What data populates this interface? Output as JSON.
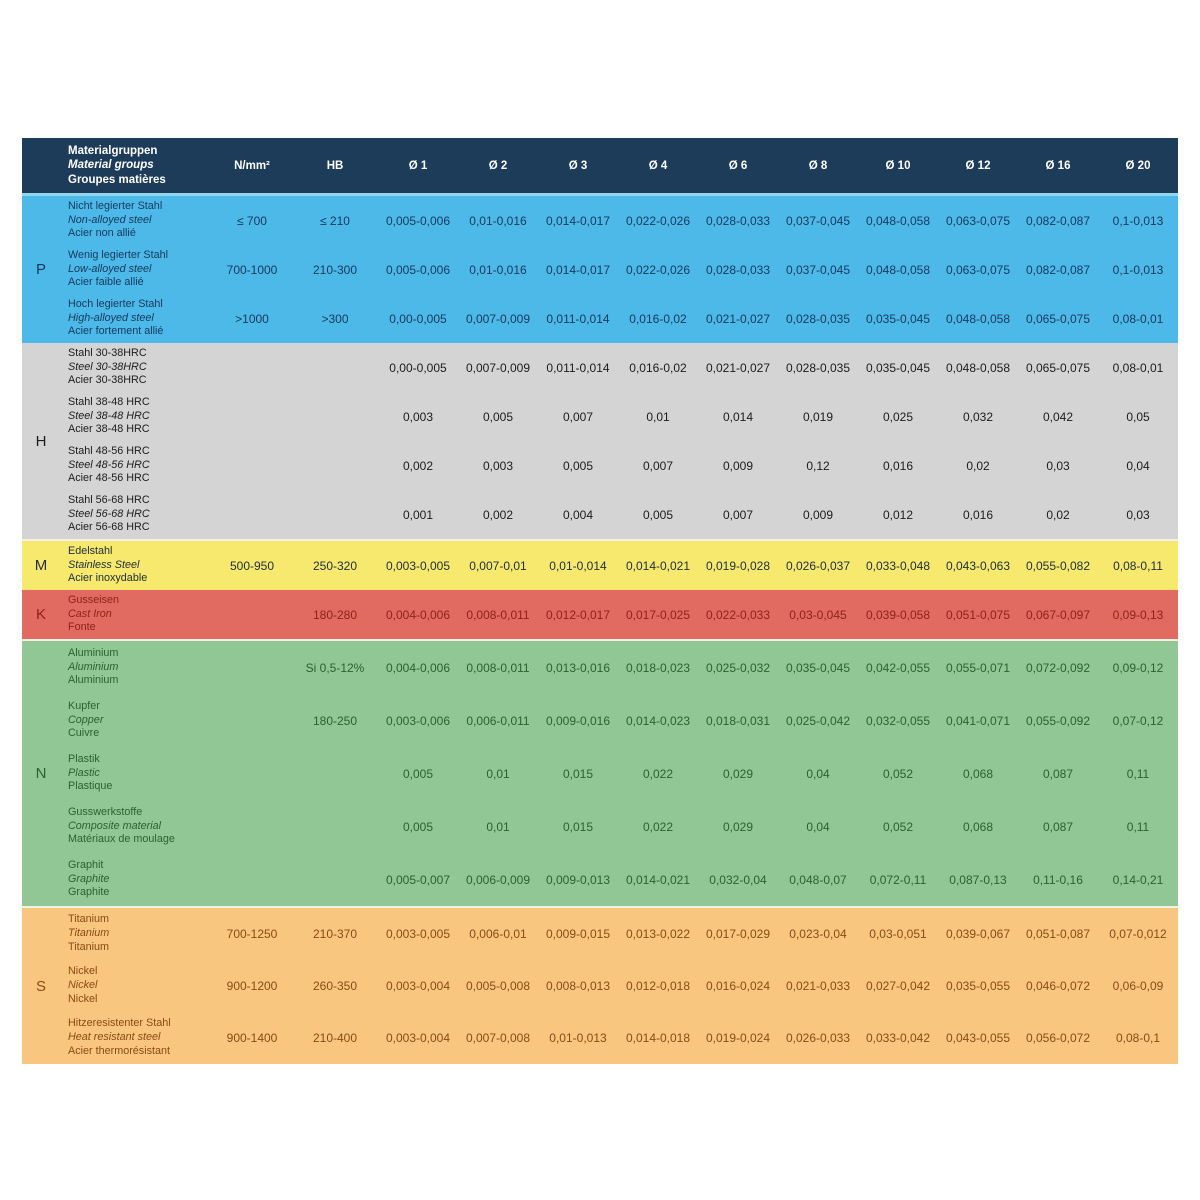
{
  "table": {
    "header": {
      "material_groups": [
        "Materialgruppen",
        "Material groups",
        "Groupes matières"
      ],
      "columns": [
        "N/mm²",
        "HB",
        "Ø 1",
        "Ø 2",
        "Ø 3",
        "Ø 4",
        "Ø 6",
        "Ø 8",
        "Ø 10",
        "Ø 12",
        "Ø 16",
        "Ø 20"
      ],
      "bg": "#1d3c59",
      "fg": "#ffffff"
    },
    "groups": [
      {
        "letter": "P",
        "bg": "#4cb9e9",
        "fg": "#17395c",
        "bold_names": true,
        "rows": [
          {
            "names": [
              "Nicht legierter Stahl",
              "Non-alloyed steel",
              "Acier non allié"
            ],
            "nmm2": "≤ 700",
            "hb": "≤ 210",
            "values": [
              "0,005-0,006",
              "0,01-0,016",
              "0,014-0,017",
              "0,022-0,026",
              "0,028-0,033",
              "0,037-0,045",
              "0,048-0,058",
              "0,063-0,075",
              "0,082-0,087",
              "0,1-0,013"
            ]
          },
          {
            "names": [
              "Wenig legierter Stahl",
              "Low-alloyed steel",
              "Acier faible allié"
            ],
            "nmm2": "700-1000",
            "hb": "210-300",
            "values": [
              "0,005-0,006",
              "0,01-0,016",
              "0,014-0,017",
              "0,022-0,026",
              "0,028-0,033",
              "0,037-0,045",
              "0,048-0,058",
              "0,063-0,075",
              "0,082-0,087",
              "0,1-0,013"
            ]
          },
          {
            "names": [
              "Hoch legierter Stahl",
              "High-alloyed steel",
              "Acier fortement allié"
            ],
            "nmm2": ">1000",
            "hb": ">300",
            "values": [
              "0,00-0,005",
              "0,007-0,009",
              "0,011-0,014",
              "0,016-0,02",
              "0,021-0,027",
              "0,028-0,035",
              "0,035-0,045",
              "0,048-0,058",
              "0,065-0,075",
              "0,08-0,01"
            ]
          }
        ]
      },
      {
        "letter": "H",
        "bg": "#d4d4d4",
        "fg": "#1c1c1c",
        "bold_names": true,
        "rows": [
          {
            "names": [
              "Stahl 30-38HRC",
              "Steel 30-38HRC",
              "Acier 30-38HRC"
            ],
            "nmm2": "",
            "hb": "",
            "values": [
              "0,00-0,005",
              "0,007-0,009",
              "0,011-0,014",
              "0,016-0,02",
              "0,021-0,027",
              "0,028-0,035",
              "0,035-0,045",
              "0,048-0,058",
              "0,065-0,075",
              "0,08-0,01"
            ]
          },
          {
            "names": [
              "Stahl 38-48 HRC",
              "Steel 38-48 HRC",
              "Acier 38-48 HRC"
            ],
            "nmm2": "",
            "hb": "",
            "values": [
              "0,003",
              "0,005",
              "0,007",
              "0,01",
              "0,014",
              "0,019",
              "0,025",
              "0,032",
              "0,042",
              "0,05"
            ]
          },
          {
            "names": [
              "Stahl 48-56 HRC",
              "Steel 48-56 HRC",
              "Acier 48-56 HRC"
            ],
            "nmm2": "",
            "hb": "",
            "values": [
              "0,002",
              "0,003",
              "0,005",
              "0,007",
              "0,009",
              "0,12",
              "0,016",
              "0,02",
              "0,03",
              "0,04"
            ]
          },
          {
            "names": [
              "Stahl 56-68 HRC",
              "Steel 56-68 HRC",
              "Acier 56-68 HRC"
            ],
            "nmm2": "",
            "hb": "",
            "values": [
              "0,001",
              "0,002",
              "0,004",
              "0,005",
              "0,007",
              "0,009",
              "0,012",
              "0,016",
              "0,02",
              "0,03"
            ]
          }
        ]
      },
      {
        "letter": "M",
        "bg": "#f7e96d",
        "fg": "#20303d",
        "bold_names": true,
        "rows": [
          {
            "names": [
              "Edelstahl",
              "Stainless Steel",
              "Acier inoxydable"
            ],
            "nmm2": "500-950",
            "hb": "250-320",
            "values": [
              "0,003-0,005",
              "0,007-0,01",
              "0,01-0,014",
              "0,014-0,021",
              "0,019-0,028",
              "0,026-0,037",
              "0,033-0,048",
              "0,043-0,063",
              "0,055-0,082",
              "0,08-0,11"
            ]
          }
        ]
      },
      {
        "letter": "K",
        "bg": "#e16a61",
        "fg": "#8f2318",
        "bold_names": false,
        "rows": [
          {
            "names": [
              "Gusseisen",
              "Cast Iron",
              "Fonte"
            ],
            "nmm2": "",
            "hb": "180-280",
            "values": [
              "0,004-0,006",
              "0,008-0,011",
              "0,012-0,017",
              "0,017-0,025",
              "0,022-0,033",
              "0,03-0,045",
              "0,039-0,058",
              "0,051-0,075",
              "0,067-0,097",
              "0,09-0,13"
            ]
          }
        ]
      },
      {
        "letter": "N",
        "bg": "#90c794",
        "fg": "#2c6132",
        "bold_names": false,
        "rows": [
          {
            "names": [
              "Aluminium",
              "Aluminium",
              "Aluminium"
            ],
            "nmm2": "",
            "hb": "Si 0,5-12%",
            "values": [
              "0,004-0,006",
              "0,008-0,011",
              "0,013-0,016",
              "0,018-0,023",
              "0,025-0,032",
              "0,035-0,045",
              "0,042-0,055",
              "0,055-0,071",
              "0,072-0,092",
              "0,09-0,12"
            ]
          },
          {
            "names": [
              "Kupfer",
              "Copper",
              "Cuivre"
            ],
            "nmm2": "",
            "hb": "180-250",
            "values": [
              "0,003-0,006",
              "0,006-0,011",
              "0,009-0,016",
              "0,014-0,023",
              "0,018-0,031",
              "0,025-0,042",
              "0,032-0,055",
              "0,041-0,071",
              "0,055-0,092",
              "0,07-0,12"
            ]
          },
          {
            "names": [
              "Plastik",
              "Plastic",
              "Plastique"
            ],
            "nmm2": "",
            "hb": "",
            "values": [
              "0,005",
              "0,01",
              "0,015",
              "0,022",
              "0,029",
              "0,04",
              "0,052",
              "0,068",
              "0,087",
              "0,11"
            ]
          },
          {
            "names": [
              "Gusswerkstoffe",
              "Composite material",
              "Matériaux de moulage"
            ],
            "nmm2": "",
            "hb": "",
            "values": [
              "0,005",
              "0,01",
              "0,015",
              "0,022",
              "0,029",
              "0,04",
              "0,052",
              "0,068",
              "0,087",
              "0,11"
            ]
          },
          {
            "names": [
              "Graphit",
              "Graphite",
              "Graphite"
            ],
            "nmm2": "",
            "hb": "",
            "values": [
              "0,005-0,007",
              "0,006-0,009",
              "0,009-0,013",
              "0,014-0,021",
              "0,032-0,04",
              "0,048-0,07",
              "0,072-0,11",
              "0,087-0,13",
              "0,11-0,16",
              "0,14-0,21"
            ]
          }
        ]
      },
      {
        "letter": "S",
        "bg": "#f8c67e",
        "fg": "#8a4a15",
        "bold_names": false,
        "rows": [
          {
            "names": [
              "Titanium",
              "Titanium",
              "Titanium"
            ],
            "nmm2": "700-1250",
            "hb": "210-370",
            "values": [
              "0,003-0,005",
              "0,006-0,01",
              "0,009-0,015",
              "0,013-0,022",
              "0,017-0,029",
              "0,023-0,04",
              "0,03-0,051",
              "0,039-0,067",
              "0,051-0,087",
              "0,07-0,012"
            ]
          },
          {
            "names": [
              "Nickel",
              "Nickel",
              "Nickel"
            ],
            "nmm2": "900-1200",
            "hb": "260-350",
            "values": [
              "0,003-0,004",
              "0,005-0,008",
              "0,008-0,013",
              "0,012-0,018",
              "0,016-0,024",
              "0,021-0,033",
              "0,027-0,042",
              "0,035-0,055",
              "0,046-0,072",
              "0,06-0,09"
            ]
          },
          {
            "names": [
              "Hitzeresistenter Stahl",
              "Heat resistant steel",
              "Acier thermorésistant"
            ],
            "nmm2": "900-1400",
            "hb": "210-400",
            "values": [
              "0,003-0,004",
              "0,007-0,008",
              "0,01-0,013",
              "0,014-0,018",
              "0,019-0,024",
              "0,026-0,033",
              "0,033-0,042",
              "0,043-0,055",
              "0,056-0,072",
              "0,08-0,1"
            ]
          }
        ]
      }
    ]
  }
}
